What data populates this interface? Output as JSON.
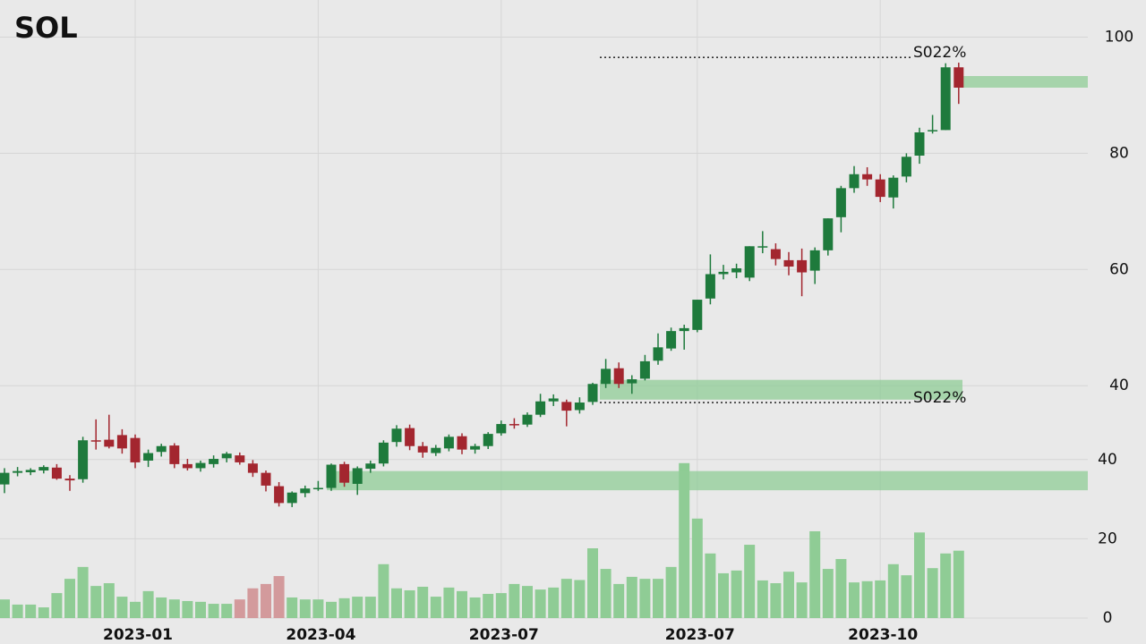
{
  "chart_data": {
    "type": "candlestick",
    "title": "SOL",
    "categories": [
      null,
      null,
      null,
      null,
      null,
      null,
      null,
      null,
      null,
      null,
      "2023-01",
      null,
      null,
      null,
      null,
      null,
      null,
      null,
      null,
      null,
      null,
      null,
      null,
      null,
      "2023-04",
      null,
      null,
      null,
      null,
      null,
      null,
      null,
      null,
      null,
      null,
      null,
      null,
      null,
      "2023-07",
      null,
      null,
      null,
      null,
      null,
      null,
      null,
      null,
      null,
      null,
      null,
      null,
      null,
      null,
      "2023-07",
      null,
      null,
      null,
      null,
      null,
      null,
      null,
      null,
      null,
      null,
      null,
      null,
      null,
      "2023-10",
      null,
      null,
      null,
      null,
      null,
      null
    ],
    "ohlc": [
      [
        23.0,
        25.8,
        21.5,
        25.0
      ],
      [
        25.0,
        26.0,
        24.4,
        25.3
      ],
      [
        25.1,
        25.8,
        24.6,
        25.5
      ],
      [
        25.4,
        26.3,
        24.9,
        26.0
      ],
      [
        25.9,
        26.5,
        23.8,
        24.0
      ],
      [
        24.0,
        24.6,
        21.9,
        23.7
      ],
      [
        23.9,
        31.2,
        23.3,
        30.6
      ],
      [
        30.6,
        34.2,
        29.0,
        30.4
      ],
      [
        30.7,
        35.0,
        29.2,
        29.5
      ],
      [
        31.5,
        32.5,
        28.3,
        29.2
      ],
      [
        31.0,
        31.6,
        25.8,
        26.8
      ],
      [
        27.1,
        29.0,
        26.0,
        28.4
      ],
      [
        28.6,
        30.0,
        27.8,
        29.6
      ],
      [
        29.7,
        30.1,
        25.8,
        26.5
      ],
      [
        26.5,
        27.4,
        25.4,
        25.8
      ],
      [
        25.8,
        27.1,
        25.2,
        26.7
      ],
      [
        26.5,
        28.0,
        25.9,
        27.4
      ],
      [
        27.5,
        28.6,
        26.8,
        28.3
      ],
      [
        28.0,
        28.5,
        26.4,
        26.8
      ],
      [
        26.6,
        27.2,
        24.3,
        25.0
      ],
      [
        25.0,
        25.4,
        21.8,
        22.8
      ],
      [
        22.7,
        23.4,
        19.2,
        19.8
      ],
      [
        19.8,
        21.8,
        19.1,
        21.6
      ],
      [
        21.5,
        22.8,
        20.8,
        22.3
      ],
      [
        22.2,
        23.6,
        21.9,
        22.4
      ],
      [
        22.4,
        26.6,
        21.9,
        26.4
      ],
      [
        26.5,
        26.9,
        22.6,
        23.3
      ],
      [
        23.1,
        26.1,
        21.2,
        25.8
      ],
      [
        25.7,
        27.1,
        25.0,
        26.6
      ],
      [
        26.6,
        30.6,
        26.1,
        30.2
      ],
      [
        30.3,
        33.2,
        29.5,
        32.6
      ],
      [
        32.7,
        33.3,
        28.9,
        29.6
      ],
      [
        29.6,
        30.3,
        27.6,
        28.5
      ],
      [
        28.4,
        29.8,
        27.9,
        29.3
      ],
      [
        29.2,
        31.6,
        28.7,
        31.2
      ],
      [
        31.3,
        31.8,
        28.2,
        29.0
      ],
      [
        29.0,
        30.0,
        28.3,
        29.6
      ],
      [
        29.6,
        32.0,
        29.1,
        31.7
      ],
      [
        31.8,
        34.0,
        31.4,
        33.4
      ],
      [
        33.4,
        34.4,
        32.6,
        33.2
      ],
      [
        33.3,
        35.4,
        32.9,
        35.0
      ],
      [
        35.0,
        38.6,
        34.6,
        37.3
      ],
      [
        37.3,
        38.5,
        36.5,
        37.8
      ],
      [
        37.2,
        37.6,
        33.0,
        35.7
      ],
      [
        35.8,
        38.0,
        35.2,
        37.1
      ],
      [
        37.2,
        40.5,
        36.7,
        40.3
      ],
      [
        40.3,
        44.6,
        39.6,
        42.9
      ],
      [
        43.0,
        44.0,
        39.6,
        40.3
      ],
      [
        40.4,
        41.8,
        38.6,
        41.1
      ],
      [
        41.2,
        45.3,
        40.9,
        44.2
      ],
      [
        44.3,
        49.0,
        43.6,
        46.6
      ],
      [
        46.4,
        50.0,
        46.0,
        49.4
      ],
      [
        49.4,
        50.5,
        46.2,
        49.9
      ],
      [
        49.6,
        54.8,
        49.2,
        54.8
      ],
      [
        55.0,
        62.6,
        54.0,
        59.2
      ],
      [
        59.2,
        60.8,
        58.3,
        59.6
      ],
      [
        59.5,
        61.0,
        58.5,
        60.2
      ],
      [
        58.6,
        64.0,
        58.0,
        64.0
      ],
      [
        64.0,
        66.6,
        62.8,
        64.0
      ],
      [
        63.5,
        64.5,
        60.7,
        61.8
      ],
      [
        61.6,
        63.0,
        59.0,
        60.5
      ],
      [
        61.6,
        63.6,
        55.4,
        59.5
      ],
      [
        59.8,
        63.8,
        57.5,
        63.3
      ],
      [
        63.3,
        68.8,
        62.4,
        68.8
      ],
      [
        69.0,
        74.4,
        66.4,
        74.0
      ],
      [
        74.0,
        77.8,
        73.2,
        76.4
      ],
      [
        76.4,
        77.6,
        74.4,
        75.5
      ],
      [
        75.5,
        76.4,
        71.6,
        72.5
      ],
      [
        72.4,
        76.2,
        70.5,
        75.8
      ],
      [
        76.0,
        80.0,
        75.0,
        79.4
      ],
      [
        79.6,
        84.4,
        78.2,
        83.6
      ],
      [
        83.8,
        86.6,
        83.4,
        84.0
      ],
      [
        84.0,
        95.5,
        84.0,
        94.8
      ],
      [
        94.8,
        95.6,
        88.5,
        91.3
      ]
    ],
    "up_color": "#1e7a3c",
    "down_color": "#a3262f",
    "volume": {
      "axis": "y2",
      "values": [
        4.7,
        3.4,
        3.4,
        2.7,
        6.3,
        9.9,
        12.9,
        8.1,
        8.8,
        5.4,
        4.1,
        6.8,
        5.2,
        4.7,
        4.3,
        4.1,
        3.6,
        3.6,
        4.7,
        7.5,
        8.6,
        10.6,
        5.2,
        4.7,
        4.7,
        4.1,
        5.0,
        5.4,
        5.4,
        13.6,
        7.5,
        7.0,
        7.9,
        5.4,
        7.7,
        6.8,
        5.2,
        6.1,
        6.3,
        8.6,
        8.1,
        7.2,
        7.7,
        9.9,
        9.6,
        17.6,
        12.4,
        8.6,
        10.4,
        9.9,
        9.9,
        12.9,
        39.1,
        25.1,
        16.3,
        11.3,
        12.0,
        18.5,
        9.5,
        8.8,
        11.7,
        9.0,
        21.9,
        12.4,
        14.9,
        9.0,
        9.3,
        9.5,
        13.6,
        10.8,
        21.6,
        12.6,
        16.3,
        17.0
      ],
      "colors": [
        "#8fcc95",
        "#8fcc95",
        "#8fcc95",
        "#8fcc95",
        "#8fcc95",
        "#8fcc95",
        "#8fcc95",
        "#8fcc95",
        "#8fcc95",
        "#8fcc95",
        "#8fcc95",
        "#8fcc95",
        "#8fcc95",
        "#8fcc95",
        "#8fcc95",
        "#8fcc95",
        "#8fcc95",
        "#8fcc95",
        "#d39a9c",
        "#d39a9c",
        "#d39a9c",
        "#d39a9c",
        "#8fcc95",
        "#8fcc95",
        "#8fcc95",
        "#8fcc95",
        "#8fcc95",
        "#8fcc95",
        "#8fcc95",
        "#8fcc95",
        "#8fcc95",
        "#8fcc95",
        "#8fcc95",
        "#8fcc95",
        "#8fcc95",
        "#8fcc95",
        "#8fcc95",
        "#8fcc95",
        "#8fcc95",
        "#8fcc95",
        "#8fcc95",
        "#8fcc95",
        "#8fcc95",
        "#8fcc95",
        "#8fcc95",
        "#8fcc95",
        "#8fcc95",
        "#8fcc95",
        "#8fcc95",
        "#8fcc95",
        "#8fcc95",
        "#8fcc95",
        "#8fcc95",
        "#8fcc95",
        "#8fcc95",
        "#8fcc95",
        "#8fcc95",
        "#8fcc95",
        "#8fcc95",
        "#8fcc95",
        "#8fcc95",
        "#8fcc95",
        "#8fcc95",
        "#8fcc95",
        "#8fcc95",
        "#8fcc95",
        "#8fcc95",
        "#8fcc95",
        "#8fcc95",
        "#8fcc95",
        "#8fcc95",
        "#8fcc95",
        "#8fcc95",
        "#8fcc95"
      ]
    },
    "ylim": [
      0,
      103
    ],
    "yticks": [
      40,
      60,
      80,
      100
    ],
    "y2lim": [
      0,
      151
    ],
    "y2ticks": [
      0,
      20,
      40
    ],
    "grid": true,
    "zones": [
      {
        "from": 91.3,
        "to": 93.3
      },
      {
        "from": 37.6,
        "to": 41.0
      },
      {
        "from": 22.0,
        "to": 25.3
      }
    ],
    "zone_color": "#8fcc95",
    "levels": [
      {
        "value": 96.5,
        "label": "S022%"
      },
      {
        "value": 37.1,
        "label": "S022%"
      }
    ]
  }
}
